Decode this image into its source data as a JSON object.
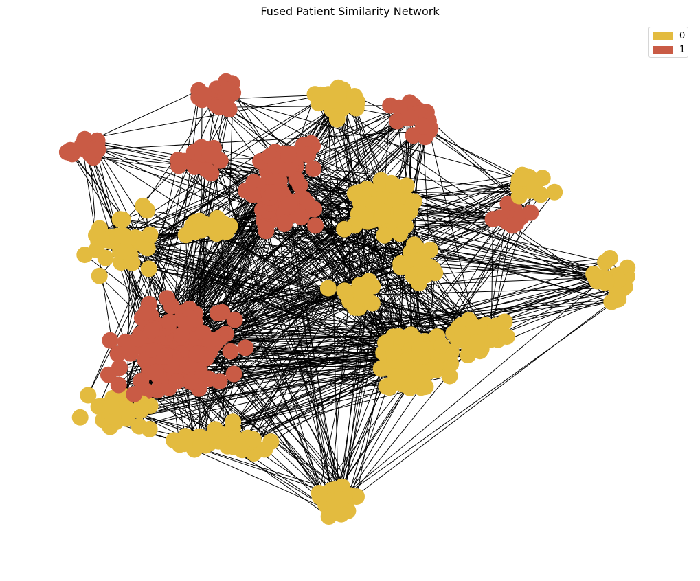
{
  "title": "Fused Patient Similarity Network",
  "colors": {
    "0": "#E3BB3F",
    "1": "#C95B45",
    "edge": "#000000"
  },
  "legend": [
    {
      "label": "0",
      "color": "#E3BB3F"
    },
    {
      "label": "1",
      "color": "#C95B45"
    }
  ]
}
